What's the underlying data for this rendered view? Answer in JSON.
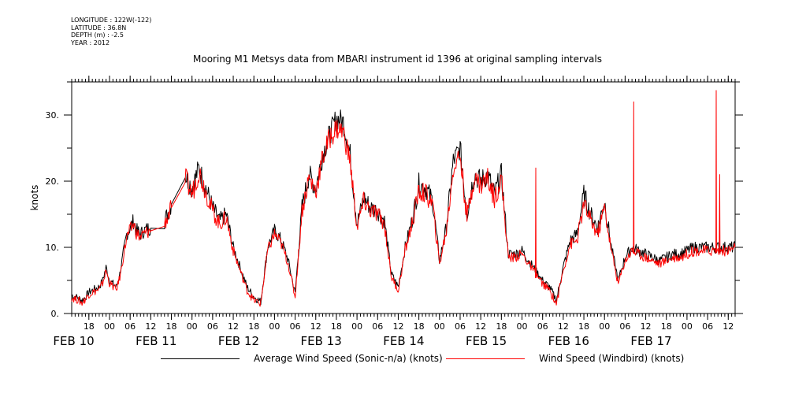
{
  "meta": {
    "longitude": "LONGITUDE : 122W(-122)",
    "latitude": "LATITUDE : 36.8N",
    "depth": "DEPTH (m) : -2.5",
    "year": "YEAR : 2012"
  },
  "chart_data": {
    "type": "line",
    "title": "Mooring M1 Metsys data from MBARI instrument id 1396 at original sampling intervals",
    "ylabel": "knots",
    "xlabel": "",
    "ylim": [
      0,
      35
    ],
    "x_unit": "hours since 00 FEB 10 2012",
    "xlim": [
      13,
      206
    ],
    "yticks": [
      0,
      10,
      20,
      30
    ],
    "ytick_labels": [
      "0.",
      "10.",
      "20.",
      "30."
    ],
    "hour_ticks": [
      {
        "x": 18,
        "label": "18"
      },
      {
        "x": 24,
        "label": "00"
      },
      {
        "x": 30,
        "label": "06"
      },
      {
        "x": 36,
        "label": "12"
      },
      {
        "x": 42,
        "label": "18"
      },
      {
        "x": 48,
        "label": "00"
      },
      {
        "x": 54,
        "label": "06"
      },
      {
        "x": 60,
        "label": "12"
      },
      {
        "x": 66,
        "label": "18"
      },
      {
        "x": 72,
        "label": "00"
      },
      {
        "x": 78,
        "label": "06"
      },
      {
        "x": 84,
        "label": "12"
      },
      {
        "x": 90,
        "label": "18"
      },
      {
        "x": 96,
        "label": "00"
      },
      {
        "x": 102,
        "label": "06"
      },
      {
        "x": 108,
        "label": "12"
      },
      {
        "x": 114,
        "label": "18"
      },
      {
        "x": 120,
        "label": "00"
      },
      {
        "x": 126,
        "label": "06"
      },
      {
        "x": 132,
        "label": "12"
      },
      {
        "x": 138,
        "label": "18"
      },
      {
        "x": 144,
        "label": "00"
      },
      {
        "x": 150,
        "label": "06"
      },
      {
        "x": 156,
        "label": "12"
      },
      {
        "x": 162,
        "label": "18"
      },
      {
        "x": 168,
        "label": "00"
      },
      {
        "x": 174,
        "label": "06"
      },
      {
        "x": 180,
        "label": "12"
      },
      {
        "x": 186,
        "label": "18"
      },
      {
        "x": 192,
        "label": "00"
      },
      {
        "x": 198,
        "label": "06"
      },
      {
        "x": 204,
        "label": "12"
      }
    ],
    "day_labels": [
      {
        "x": 9,
        "label": "FEB 10"
      },
      {
        "x": 33,
        "label": "FEB 11"
      },
      {
        "x": 57,
        "label": "FEB 12"
      },
      {
        "x": 81,
        "label": "FEB 13"
      },
      {
        "x": 105,
        "label": "FEB 14"
      },
      {
        "x": 129,
        "label": "FEB 15"
      },
      {
        "x": 153,
        "label": "FEB 16"
      },
      {
        "x": 177,
        "label": "FEB 17"
      }
    ],
    "legend": "bottom",
    "grid": false,
    "series": [
      {
        "name": "Average Wind Speed (Sonic-n/a) (knots)",
        "color": "#000000",
        "x": [
          13,
          15,
          16,
          17,
          18,
          19,
          20,
          21,
          22,
          23,
          24,
          25,
          26,
          27,
          28,
          29,
          30,
          31,
          32,
          33,
          34,
          35,
          36,
          40,
          42,
          46,
          48,
          50,
          52,
          54,
          56,
          58,
          60,
          62,
          64,
          66,
          68,
          70,
          72,
          74,
          76,
          78,
          80,
          82,
          84,
          86,
          88,
          90,
          92,
          94,
          96,
          98,
          100,
          102,
          104,
          106,
          108,
          110,
          112,
          114,
          116,
          118,
          120,
          122,
          124,
          126,
          128,
          130,
          132,
          134,
          136,
          138,
          140,
          142,
          144,
          146,
          148,
          150,
          152,
          154,
          156,
          158,
          160,
          162,
          164,
          166,
          168,
          170,
          172,
          174,
          176,
          178,
          180,
          182,
          184,
          186,
          188,
          190,
          192,
          194,
          196,
          198,
          200,
          202,
          204,
          206
        ],
        "y": [
          2.8,
          2.3,
          2.0,
          2.5,
          3.2,
          3.5,
          3.8,
          4.0,
          5.0,
          7.0,
          5.0,
          4.5,
          4.0,
          6.0,
          9.0,
          12.0,
          13.0,
          14.0,
          12.5,
          12.0,
          12.5,
          12.8,
          12.9,
          14.0,
          16.5,
          21.0,
          19.0,
          22.0,
          19.0,
          16.0,
          14.0,
          15.0,
          10.0,
          7.0,
          4.0,
          2.5,
          1.8,
          10.0,
          12.5,
          11.0,
          8.0,
          3.0,
          16.0,
          21.0,
          19.0,
          24.0,
          27.0,
          29.5,
          29.0,
          24.0,
          13.5,
          17.5,
          16.0,
          15.5,
          14.0,
          6.0,
          4.0,
          10.0,
          14.0,
          19.5,
          19.0,
          17.0,
          8.0,
          13.0,
          23.0,
          25.0,
          15.0,
          21.0,
          20.0,
          21.0,
          18.0,
          21.0,
          9.0,
          9.0,
          9.5,
          8.0,
          6.5,
          5.0,
          4.0,
          2.0,
          7.0,
          11.0,
          12.0,
          18.0,
          15.0,
          13.0,
          17.0,
          10.0,
          5.0,
          8.5,
          10.0,
          9.5,
          9.0,
          8.5,
          8.0,
          8.5,
          9.0,
          9.0,
          9.5,
          10.0,
          10.0,
          10.0,
          10.0,
          10.0,
          10.0,
          10.0
        ]
      },
      {
        "name": "Wind Speed (Windbird) (knots)",
        "color": "#ff0000",
        "x": [
          13,
          15,
          16,
          17,
          18,
          19,
          20,
          21,
          22,
          23,
          24,
          25,
          26,
          27,
          28,
          29,
          30,
          31,
          32,
          33,
          34,
          35,
          36,
          40,
          42,
          46,
          48,
          50,
          52,
          54,
          56,
          58,
          60,
          62,
          64,
          66,
          68,
          70,
          72,
          74,
          76,
          78,
          80,
          82,
          84,
          86,
          88,
          90,
          92,
          94,
          96,
          98,
          100,
          102,
          104,
          106,
          108,
          110,
          112,
          114,
          116,
          118,
          120,
          122,
          124,
          126,
          128,
          130,
          132,
          134,
          136,
          138,
          140,
          142,
          144,
          146,
          148,
          150,
          152,
          154,
          156,
          158,
          160,
          162,
          164,
          166,
          168,
          170,
          172,
          174,
          176,
          178,
          180,
          182,
          184,
          186,
          188,
          190,
          192,
          194,
          196,
          198,
          200,
          202,
          204,
          206
        ],
        "y": [
          2.4,
          2.0,
          1.6,
          2.2,
          2.9,
          3.2,
          3.4,
          3.6,
          4.6,
          6.5,
          4.6,
          4.1,
          3.6,
          5.5,
          8.5,
          11.5,
          12.5,
          13.5,
          12.0,
          11.5,
          12.0,
          12.3,
          12.5,
          13.5,
          16.0,
          20.5,
          18.0,
          21.5,
          18.5,
          15.5,
          13.5,
          14.5,
          9.5,
          6.5,
          3.5,
          2.0,
          1.5,
          9.5,
          12.0,
          10.5,
          7.5,
          2.5,
          15.5,
          20.5,
          18.5,
          23.5,
          26.5,
          28.0,
          27.5,
          23.0,
          13.0,
          17.0,
          15.5,
          15.0,
          13.5,
          5.5,
          3.5,
          9.5,
          13.5,
          18.5,
          18.0,
          16.5,
          7.5,
          12.5,
          22.0,
          24.0,
          14.5,
          20.5,
          19.5,
          20.5,
          17.5,
          20.5,
          8.5,
          8.5,
          9.0,
          7.5,
          6.0,
          4.5,
          3.5,
          1.5,
          6.5,
          10.5,
          11.0,
          16.5,
          14.0,
          12.0,
          16.0,
          9.5,
          4.5,
          8.0,
          9.5,
          9.0,
          8.5,
          8.0,
          7.5,
          8.0,
          8.5,
          8.5,
          9.0,
          9.5,
          9.5,
          9.5,
          9.5,
          9.5,
          9.5,
          10.0
        ],
        "spikes": [
          {
            "x": 148,
            "y": 22.0
          },
          {
            "x": 176.5,
            "y": 32.0
          },
          {
            "x": 200.5,
            "y": 33.7
          },
          {
            "x": 201.5,
            "y": 21.0
          }
        ]
      }
    ]
  }
}
